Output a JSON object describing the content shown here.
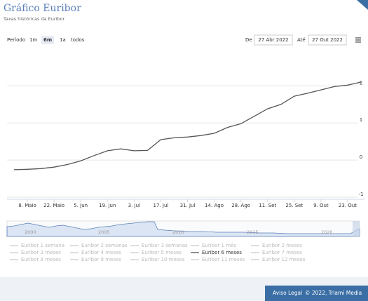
{
  "header": {
    "title": "Gráfico Euribor",
    "subtitle": "Taxas históricas da Euribor"
  },
  "controls": {
    "period_label": "Período",
    "buttons": [
      "1m",
      "6m",
      "1a",
      "todos"
    ],
    "selected": 1,
    "from_label": "De",
    "from": "27 Abr 2022",
    "to_label": "Até",
    "to": "27 Out 2022"
  },
  "navigator": {
    "labels": [
      "2000",
      "2005",
      "2010",
      "2015",
      "2020"
    ]
  },
  "footer": {
    "legal": "Aviso Legal",
    "copyright": "© 2022, Triami Media"
  },
  "chart_data": {
    "type": "line",
    "categories": [
      null,
      "8. Maio",
      null,
      "22. Maio",
      null,
      "5. Jun",
      null,
      "19. Jun",
      null,
      "3. Jul",
      null,
      "17. Jul",
      null,
      "31. Jul",
      null,
      "14. Ago",
      null,
      "28. Ago",
      null,
      "11. Set",
      null,
      "25. Set",
      null,
      "9. Out",
      null,
      "23. Out",
      null
    ],
    "series": [
      {
        "name": "Euribor 1 semana",
        "visible": false
      },
      {
        "name": "Euribor 2 semanas",
        "visible": false
      },
      {
        "name": "Euribor 3 semanas",
        "visible": false
      },
      {
        "name": "Euribor 1 mês",
        "visible": false
      },
      {
        "name": "Euribor 2 meses",
        "visible": false
      },
      {
        "name": "Euribor 3 meses",
        "visible": false
      },
      {
        "name": "Euribor 4 meses",
        "visible": false
      },
      {
        "name": "Euribor 5 meses",
        "visible": false
      },
      {
        "name": "Euribor 6 meses",
        "visible": true,
        "color": "#555555",
        "values": [
          -0.26,
          -0.25,
          -0.23,
          -0.19,
          -0.12,
          -0.02,
          0.12,
          0.25,
          0.3,
          0.25,
          0.26,
          0.55,
          0.6,
          0.62,
          0.66,
          0.72,
          0.88,
          0.98,
          1.18,
          1.38,
          1.5,
          1.72,
          1.8,
          1.89,
          1.98,
          2.02,
          2.1
        ]
      },
      {
        "name": "Euribor 7 meses",
        "visible": false
      },
      {
        "name": "Euribor 8 meses",
        "visible": false
      },
      {
        "name": "Euribor 9 meses",
        "visible": false
      },
      {
        "name": "Euribor 10 meses",
        "visible": false
      },
      {
        "name": "Euribor 11 meses",
        "visible": false
      },
      {
        "name": "Euribor 12 meses",
        "visible": false
      }
    ],
    "ylim": [
      -1,
      2.8
    ],
    "yticks": [
      -1,
      0,
      1,
      2
    ],
    "grid": true
  }
}
